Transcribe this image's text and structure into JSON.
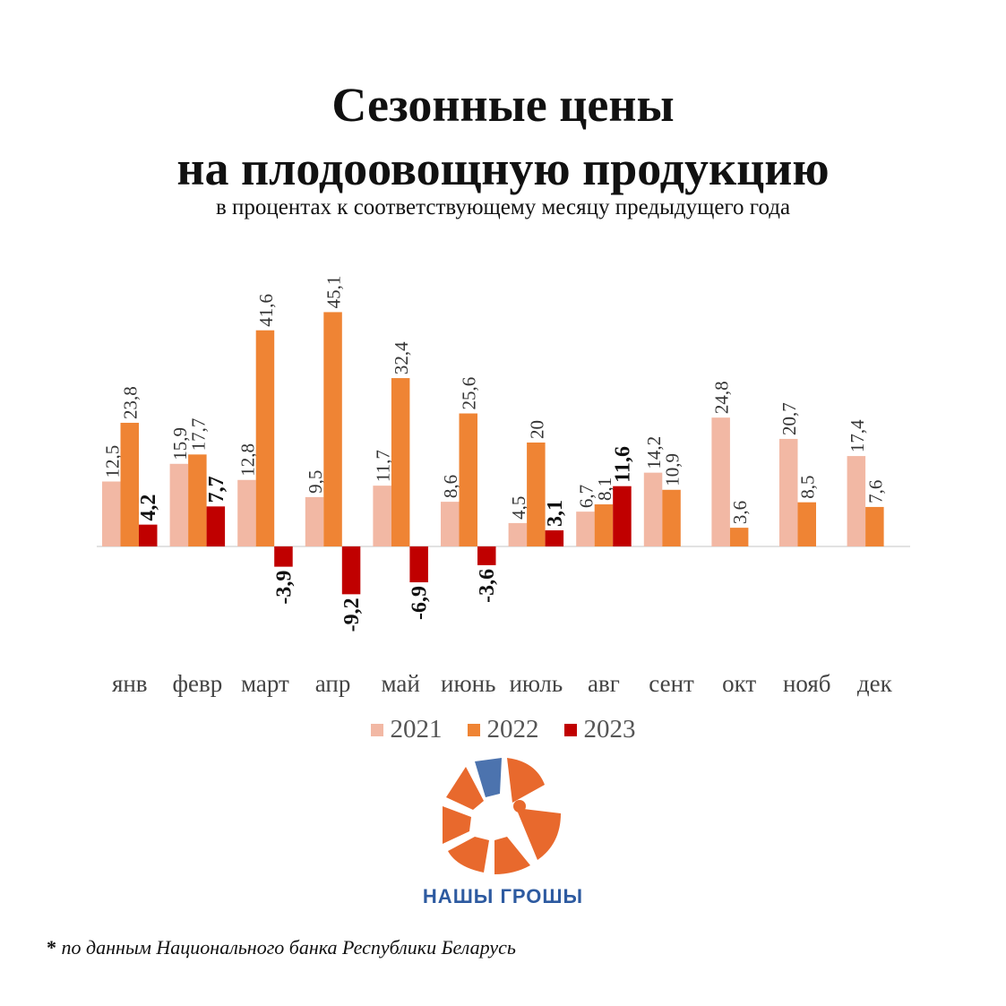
{
  "title_line1": "Сезонные цены",
  "title_line2": "на плодоовощную продукцию",
  "subtitle": "в процентах к соответствующему месяцу предыдущего года",
  "brand": "НАШЫ ГРОШЫ",
  "footnote_star": "*",
  "footnote_text": "по данным Национального банка Республики Беларусь",
  "colors": {
    "s2021": "#f2b8a4",
    "s2022": "#ef8434",
    "s2023": "#c00000",
    "brand_blue": "#2d5aa0",
    "logo_orange": "#e8692d"
  },
  "logo_icon": "orange-slices-logo-icon",
  "chart_data": {
    "type": "bar",
    "categories": [
      "янв",
      "февр",
      "март",
      "апр",
      "май",
      "июнь",
      "июль",
      "авг",
      "сент",
      "окт",
      "нояб",
      "дек"
    ],
    "series": [
      {
        "name": "2021",
        "values": [
          12.5,
          15.9,
          12.8,
          9.5,
          11.7,
          8.6,
          4.5,
          6.7,
          14.2,
          24.8,
          20.7,
          17.4
        ],
        "labels": [
          "12,5",
          "15,9",
          "12,8",
          "9,5",
          "11,7",
          "8,6",
          "4,5",
          "6,7",
          "14,2",
          "24,8",
          "20,7",
          "17,4"
        ]
      },
      {
        "name": "2022",
        "values": [
          23.8,
          17.7,
          41.6,
          45.1,
          32.4,
          25.6,
          20,
          8.1,
          10.9,
          3.6,
          8.5,
          7.6
        ],
        "labels": [
          "23,8",
          "17,7",
          "41,6",
          "45,1",
          "32,4",
          "25,6",
          "20",
          "8,1",
          "10,9",
          "3,6",
          "8,5",
          "7,6"
        ]
      },
      {
        "name": "2023",
        "values": [
          4.2,
          7.7,
          -3.9,
          -9.2,
          -6.9,
          -3.6,
          3.1,
          11.6,
          null,
          null,
          null,
          null
        ],
        "labels": [
          "4,2",
          "7,7",
          "-3,9",
          "-9,2",
          "-6,9",
          "-3,6",
          "3,1",
          "11,6",
          null,
          null,
          null,
          null
        ]
      }
    ],
    "legend_position": "bottom",
    "grid": false
  }
}
